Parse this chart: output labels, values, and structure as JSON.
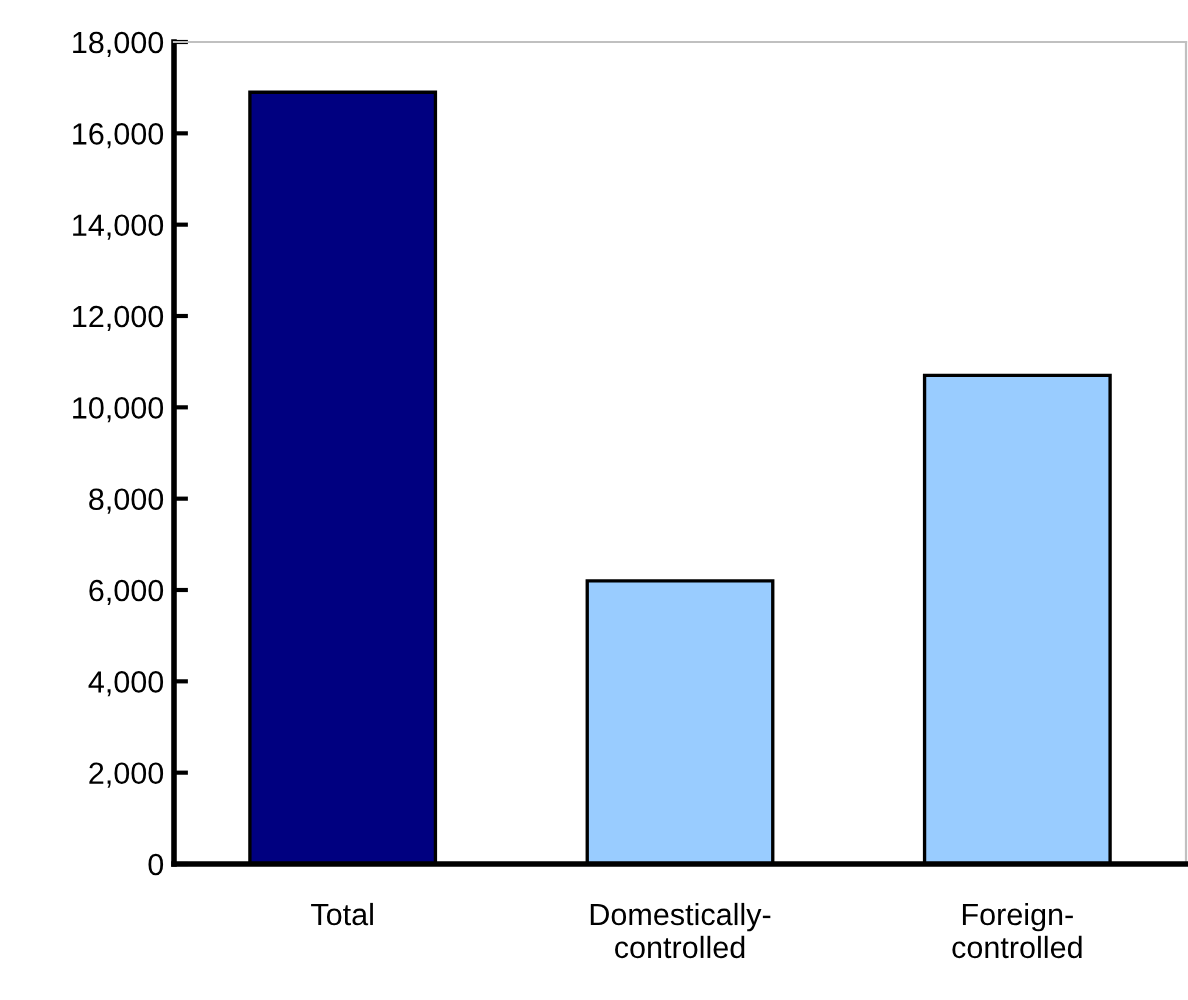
{
  "chart_data": {
    "type": "bar",
    "categories": [
      "Total",
      "Domestically-\ncontrolled",
      "Foreign-\ncontrolled"
    ],
    "values": [
      16900,
      6200,
      10700
    ],
    "colors": [
      "#000080",
      "#99ccff",
      "#99ccff"
    ],
    "ylim": [
      0,
      18000
    ],
    "yticks": [
      {
        "value": 0,
        "label": "0"
      },
      {
        "value": 2000,
        "label": "2,000"
      },
      {
        "value": 4000,
        "label": "4,000"
      },
      {
        "value": 6000,
        "label": "6,000"
      },
      {
        "value": 8000,
        "label": "8,000"
      },
      {
        "value": 10000,
        "label": "10,000"
      },
      {
        "value": 12000,
        "label": "12,000"
      },
      {
        "value": 14000,
        "label": "14,000"
      },
      {
        "value": 16000,
        "label": "16,000"
      },
      {
        "value": 18000,
        "label": "18,000"
      }
    ],
    "grid": false
  }
}
